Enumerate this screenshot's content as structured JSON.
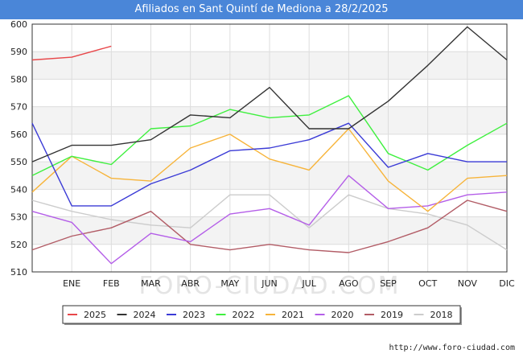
{
  "chart_data": {
    "type": "line",
    "title": "Afiliados en Sant Quintí de Mediona a 28/2/2025",
    "xlabel": "",
    "ylabel": "",
    "ylim": [
      510,
      600
    ],
    "yticks": [
      510,
      520,
      530,
      540,
      550,
      560,
      570,
      580,
      590,
      600
    ],
    "categories": [
      "",
      "ENE",
      "FEB",
      "MAR",
      "ABR",
      "MAY",
      "JUN",
      "JUL",
      "AGO",
      "SEP",
      "OCT",
      "NOV",
      "DIC"
    ],
    "grid": true,
    "legend_position": "bottom",
    "watermark": "FORO-CIUDAD.COM",
    "series": [
      {
        "name": "2025",
        "color": "#e8474a",
        "values": [
          587,
          588,
          592,
          null,
          null,
          null,
          null,
          null,
          null,
          null,
          null,
          null,
          null
        ]
      },
      {
        "name": "2024",
        "color": "#333333",
        "values": [
          550,
          556,
          556,
          558,
          567,
          566,
          577,
          562,
          562,
          572,
          585,
          599,
          587
        ]
      },
      {
        "name": "2023",
        "color": "#3b3bd6",
        "values": [
          564,
          534,
          534,
          542,
          547,
          554,
          555,
          558,
          564,
          548,
          553,
          550,
          550
        ]
      },
      {
        "name": "2022",
        "color": "#3ff03f",
        "values": [
          545,
          552,
          549,
          562,
          563,
          569,
          566,
          567,
          574,
          553,
          547,
          556,
          564
        ]
      },
      {
        "name": "2021",
        "color": "#f7b43a",
        "values": [
          539,
          552,
          544,
          543,
          555,
          560,
          551,
          547,
          562,
          543,
          532,
          544,
          545
        ]
      },
      {
        "name": "2020",
        "color": "#b45ee8",
        "values": [
          532,
          528,
          513,
          524,
          521,
          531,
          533,
          527,
          545,
          533,
          534,
          538,
          539
        ]
      },
      {
        "name": "2019",
        "color": "#b25c66",
        "values": [
          518,
          523,
          526,
          532,
          520,
          518,
          520,
          518,
          517,
          521,
          526,
          536,
          532
        ]
      },
      {
        "name": "2018",
        "color": "#cccccc",
        "values": [
          536,
          532,
          529,
          527,
          526,
          538,
          538,
          526,
          538,
          533,
          531,
          527,
          518
        ]
      }
    ]
  },
  "footer": {
    "url": "http://www.foro-ciudad.com"
  }
}
